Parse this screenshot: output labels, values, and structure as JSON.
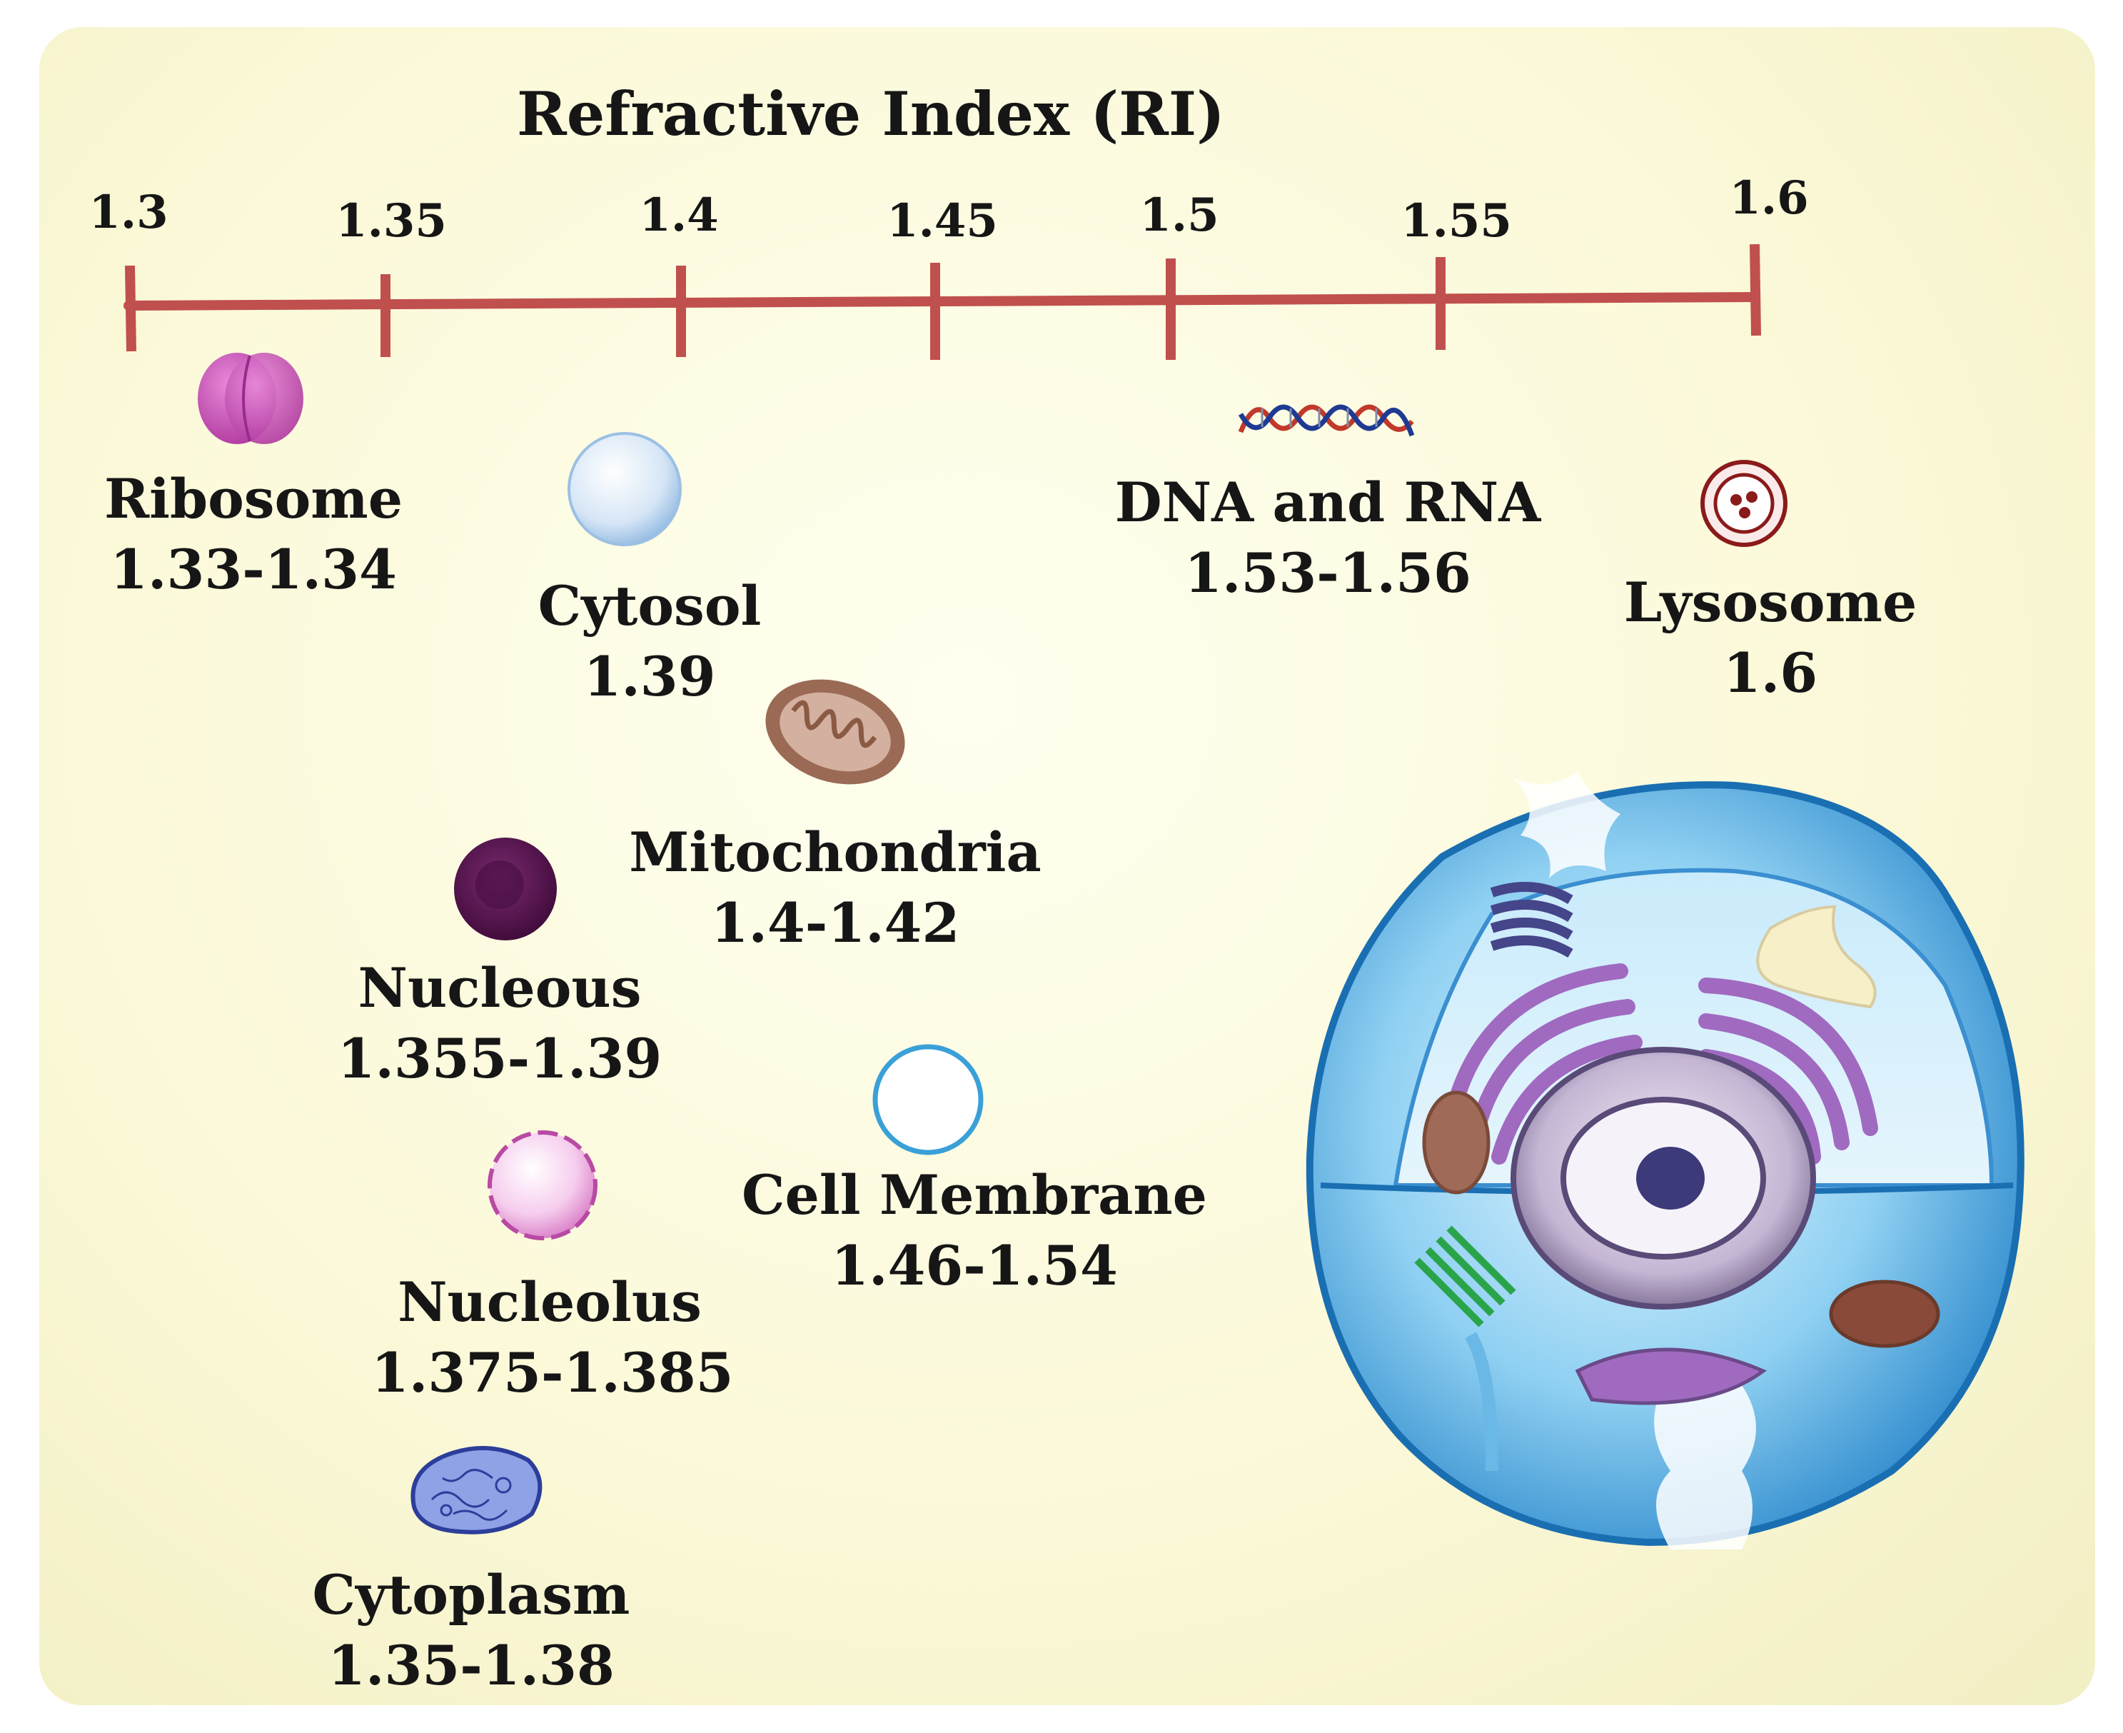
{
  "axis": {
    "title": "Refractive Index (RI)",
    "min": 1.3,
    "max": 1.6,
    "ticks": [
      "1.3",
      "1.35",
      "1.4",
      "1.45",
      "1.5",
      "1.55",
      "1.6"
    ],
    "line_color": "#c0504d"
  },
  "organelles": [
    {
      "id": "ribosome",
      "name": "Ribosome",
      "value": "1.33-1.34",
      "icon": "ribosome-icon",
      "color": "#c84fb8"
    },
    {
      "id": "cytosol",
      "name": "Cytosol",
      "value": "1.39",
      "icon": "cytosol-icon",
      "color": "#bcd6f0"
    },
    {
      "id": "dna-rna",
      "name": "DNA and RNA",
      "value": "1.53-1.56",
      "icon": "dna-helix-icon",
      "color": "#c0392b"
    },
    {
      "id": "lysosome",
      "name": "Lysosome",
      "value": "1.6",
      "icon": "lysosome-icon",
      "color": "#8b1a1a"
    },
    {
      "id": "mitochondria",
      "name": "Mitochondria",
      "value": "1.4-1.42",
      "icon": "mitochondria-icon",
      "color": "#a0705a"
    },
    {
      "id": "nucleous",
      "name": "Nucleous",
      "value": "1.355-1.39",
      "icon": "nucleus-icon",
      "color": "#5a1450"
    },
    {
      "id": "cell-membrane",
      "name": "Cell Membrane",
      "value": "1.46-1.54",
      "icon": "cell-membrane-icon",
      "color": "#3aa0d8"
    },
    {
      "id": "nucleolus",
      "name": "Nucleolus",
      "value": "1.375-1.385",
      "icon": "nucleolus-icon",
      "color": "#e8a0d8"
    },
    {
      "id": "cytoplasm",
      "name": "Cytoplasm",
      "value": "1.35-1.38",
      "icon": "cytoplasm-icon",
      "color": "#4a5ab8"
    }
  ],
  "illustration": {
    "icon": "animal-cell-illustration-icon",
    "color": "#3aa8e0"
  }
}
